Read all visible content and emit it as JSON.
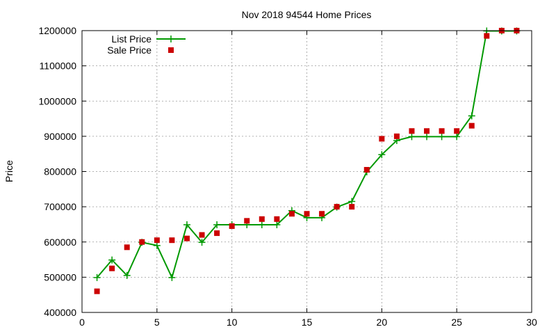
{
  "chart_data": {
    "type": "line",
    "title": "Nov 2018 94544 Home Prices",
    "xlabel": "",
    "ylabel": "Price",
    "xlim": [
      0,
      30
    ],
    "ylim": [
      400000,
      1200000
    ],
    "xticks": [
      "0",
      "5",
      "10",
      "15",
      "20",
      "25",
      "30"
    ],
    "yticks": [
      "400000",
      "500000",
      "600000",
      "700000",
      "800000",
      "900000",
      "1000000",
      "1100000",
      "1200000"
    ],
    "grid": true,
    "legend_position": "top-left",
    "x": [
      1,
      2,
      3,
      4,
      5,
      6,
      7,
      8,
      9,
      10,
      11,
      12,
      13,
      14,
      15,
      16,
      17,
      18,
      19,
      20,
      21,
      22,
      23,
      24,
      25,
      26,
      27,
      28,
      29
    ],
    "series": [
      {
        "name": "List Price",
        "style": "linespoints",
        "color": "#009900",
        "values": [
          499000,
          549000,
          505000,
          599000,
          590000,
          499000,
          649000,
          599000,
          649000,
          649000,
          649000,
          649000,
          649000,
          689000,
          669000,
          669000,
          699000,
          715000,
          799000,
          848000,
          888000,
          899000,
          899000,
          899000,
          899000,
          958000,
          1199000,
          1199000,
          1199000
        ]
      },
      {
        "name": "Sale Price",
        "style": "points",
        "color": "#cc0000",
        "values": [
          460000,
          525000,
          585000,
          600000,
          605000,
          605000,
          610000,
          620000,
          625000,
          645000,
          660000,
          665000,
          665000,
          680000,
          680000,
          680000,
          700000,
          700000,
          805000,
          893000,
          900000,
          915000,
          915000,
          915000,
          915000,
          930000,
          1185000,
          1200000,
          1200000
        ]
      }
    ]
  }
}
